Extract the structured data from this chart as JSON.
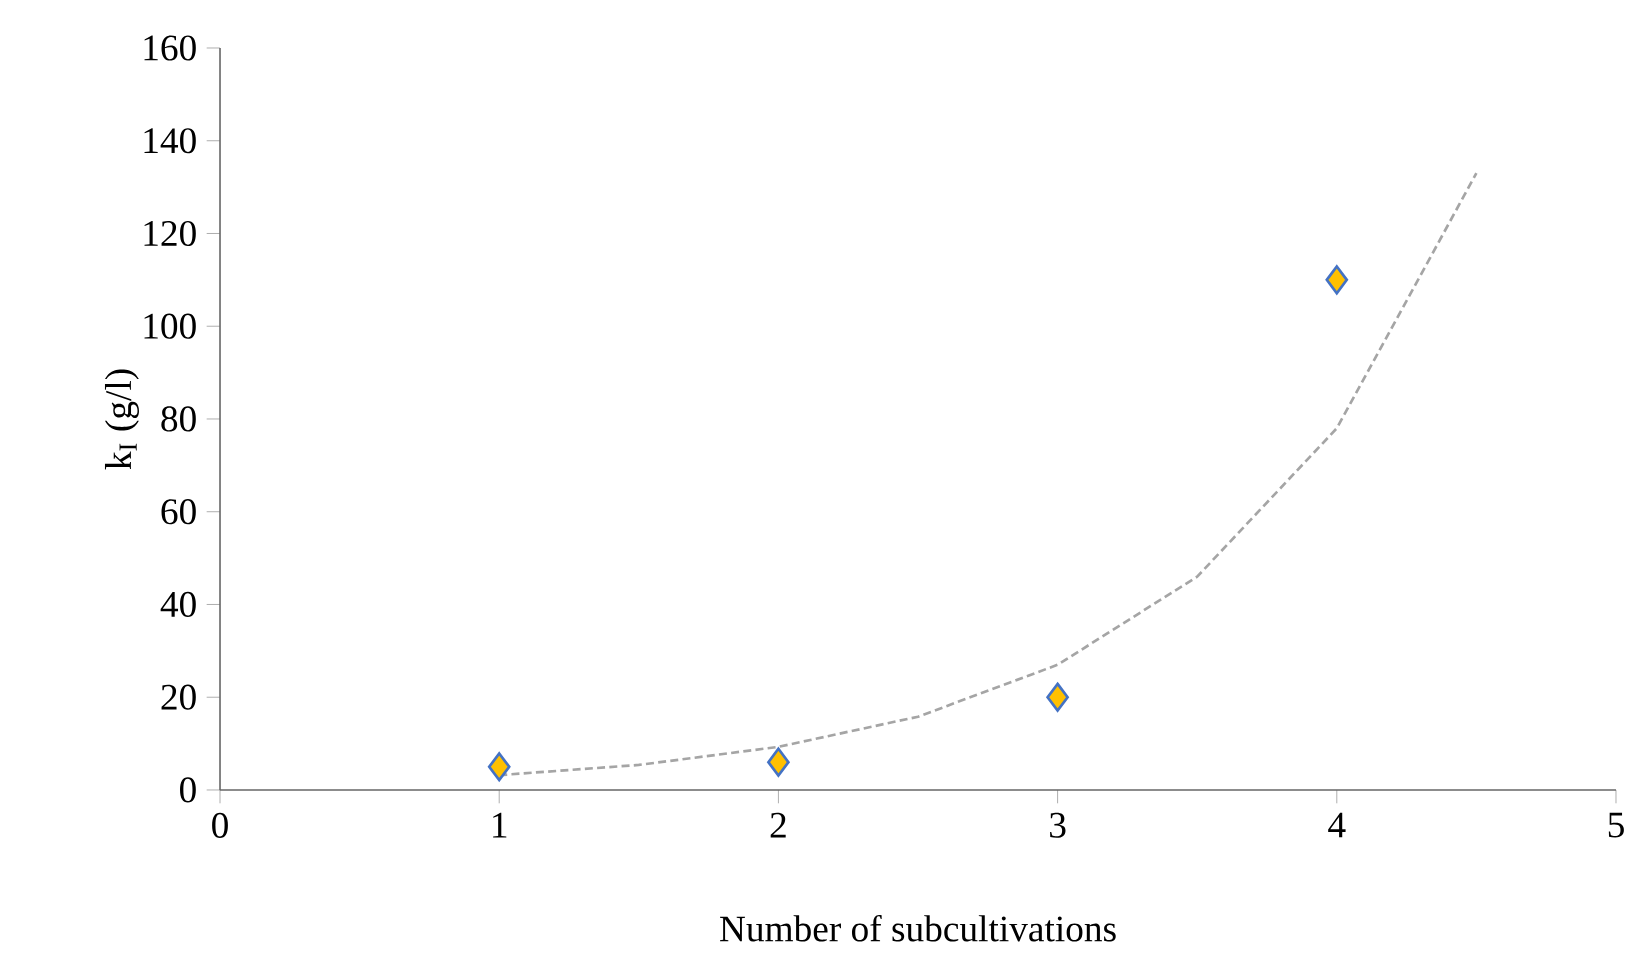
{
  "chart_data": {
    "type": "scatter",
    "xlabel": "Number of subcultivations",
    "ylabel": "k$_{I}$ (g/l)",
    "xlim": [
      0,
      5
    ],
    "xticks": [
      0,
      1,
      2,
      3,
      4,
      5
    ],
    "ylim": [
      0,
      160
    ],
    "yticks": [
      0,
      20,
      40,
      60,
      80,
      100,
      120,
      140,
      160
    ],
    "grid": false,
    "marker": "diamond",
    "series": [
      {
        "color": "#ffc000",
        "x": [
          1,
          2,
          3,
          4
        ],
        "values": [
          5,
          6,
          20,
          110
        ]
      },
      {
        "type": "line",
        "color": "#a5a5a5",
        "line_style": "dashed",
        "marker": "none",
        "x": [
          1,
          1.5,
          2,
          2.5,
          3,
          3.5,
          4,
          4.5
        ],
        "values": [
          3.2,
          5.4,
          9.3,
          15.8,
          27,
          46,
          78,
          133
        ]
      }
    ]
  }
}
